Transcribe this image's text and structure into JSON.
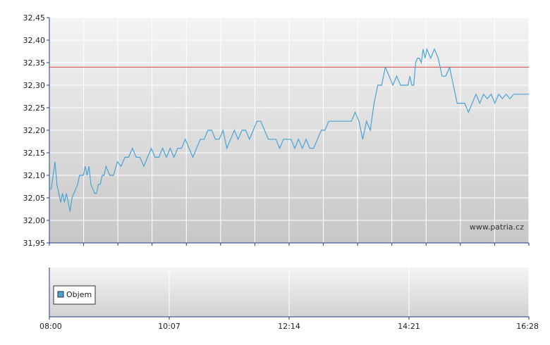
{
  "chart_data": [
    {
      "type": "line",
      "title": "",
      "xlabel": "",
      "ylabel": "",
      "ylim": [
        31.95,
        32.45
      ],
      "xlim": [
        "08:00",
        "16:28"
      ],
      "y_ticks": [
        "31,95",
        "32,00",
        "32,05",
        "32,10",
        "32,15",
        "32,20",
        "32,25",
        "32,30",
        "32,35",
        "32,40",
        "32,45"
      ],
      "grid": true,
      "reference_line": {
        "value": 32.34,
        "color": "#d94b4b"
      },
      "series": [
        {
          "color": "#4aa3d4",
          "x": [
            "08:00",
            "08:02",
            "08:04",
            "08:06",
            "08:08",
            "08:10",
            "08:12",
            "08:14",
            "08:16",
            "08:18",
            "08:20",
            "08:22",
            "08:24",
            "08:26",
            "08:28",
            "08:30",
            "08:32",
            "08:34",
            "08:36",
            "08:38",
            "08:40",
            "08:42",
            "08:44",
            "08:46",
            "08:48",
            "08:50",
            "08:52",
            "08:54",
            "08:56",
            "08:58",
            "09:00",
            "09:04",
            "09:08",
            "09:12",
            "09:16",
            "09:20",
            "09:24",
            "09:28",
            "09:32",
            "09:36",
            "09:40",
            "09:44",
            "09:48",
            "09:52",
            "09:56",
            "10:00",
            "10:04",
            "10:08",
            "10:12",
            "10:16",
            "10:20",
            "10:24",
            "10:28",
            "10:32",
            "10:36",
            "10:40",
            "10:44",
            "10:48",
            "10:52",
            "10:56",
            "11:00",
            "11:04",
            "11:08",
            "11:12",
            "11:16",
            "11:20",
            "11:24",
            "11:28",
            "11:32",
            "11:36",
            "11:40",
            "11:44",
            "11:48",
            "11:52",
            "11:56",
            "12:00",
            "12:04",
            "12:08",
            "12:12",
            "12:16",
            "12:20",
            "12:24",
            "12:28",
            "12:32",
            "12:36",
            "12:40",
            "12:44",
            "12:48",
            "12:52",
            "12:56",
            "13:00",
            "13:04",
            "13:08",
            "13:12",
            "13:16",
            "13:20",
            "13:24",
            "13:28",
            "13:32",
            "13:36",
            "13:40",
            "13:44",
            "13:48",
            "13:52",
            "13:56",
            "14:00",
            "14:04",
            "14:08",
            "14:12",
            "14:16",
            "14:20",
            "14:22",
            "14:24",
            "14:26",
            "14:28",
            "14:30",
            "14:32",
            "14:34",
            "14:36",
            "14:38",
            "14:40",
            "14:44",
            "14:48",
            "14:52",
            "14:56",
            "15:00",
            "15:04",
            "15:08",
            "15:12",
            "15:16",
            "15:20",
            "15:24",
            "15:28",
            "15:32",
            "15:36",
            "15:40",
            "15:44",
            "15:48",
            "15:52",
            "15:56",
            "16:00",
            "16:04",
            "16:08",
            "16:12",
            "16:16",
            "16:20",
            "16:24",
            "16:28"
          ],
          "values": [
            32.07,
            32.07,
            32.1,
            32.13,
            32.08,
            32.06,
            32.04,
            32.06,
            32.04,
            32.06,
            32.04,
            32.02,
            32.05,
            32.06,
            32.07,
            32.08,
            32.1,
            32.1,
            32.1,
            32.12,
            32.1,
            32.12,
            32.08,
            32.07,
            32.06,
            32.06,
            32.08,
            32.08,
            32.1,
            32.1,
            32.12,
            32.1,
            32.1,
            32.13,
            32.12,
            32.14,
            32.14,
            32.16,
            32.14,
            32.14,
            32.12,
            32.14,
            32.16,
            32.14,
            32.14,
            32.16,
            32.14,
            32.16,
            32.14,
            32.16,
            32.16,
            32.18,
            32.16,
            32.14,
            32.16,
            32.18,
            32.18,
            32.2,
            32.2,
            32.18,
            32.18,
            32.2,
            32.16,
            32.18,
            32.2,
            32.18,
            32.2,
            32.2,
            32.18,
            32.2,
            32.22,
            32.22,
            32.2,
            32.18,
            32.18,
            32.18,
            32.16,
            32.18,
            32.18,
            32.18,
            32.16,
            32.18,
            32.16,
            32.18,
            32.16,
            32.16,
            32.18,
            32.2,
            32.2,
            32.22,
            32.22,
            32.22,
            32.22,
            32.22,
            32.22,
            32.22,
            32.24,
            32.22,
            32.18,
            32.22,
            32.2,
            32.26,
            32.3,
            32.3,
            32.34,
            32.32,
            32.3,
            32.32,
            32.3,
            32.3,
            32.3,
            32.32,
            32.3,
            32.3,
            32.35,
            32.36,
            32.36,
            32.35,
            32.38,
            32.36,
            32.38,
            32.36,
            32.38,
            32.36,
            32.32,
            32.32,
            32.34,
            32.3,
            32.26,
            32.26,
            32.26,
            32.24,
            32.26,
            32.28,
            32.26,
            32.28,
            32.27,
            32.28,
            32.26,
            32.28,
            32.27,
            32.28,
            32.27,
            32.28,
            32.28,
            32.28,
            32.28,
            32.28
          ]
        }
      ]
    },
    {
      "type": "bar",
      "title": "",
      "x_ticks": [
        "08:00",
        "10:07",
        "12:14",
        "14:21",
        "16:28"
      ],
      "legend": {
        "entries": [
          "Objem"
        ],
        "placement": "bottom-left",
        "color": "#4aa3d4"
      },
      "series": []
    }
  ],
  "watermark": "www.patria.cz",
  "colors": {
    "grid": "#ffffff",
    "plot_top": "#f2f2f2",
    "plot_bottom": "#c9c9c9",
    "axis": "#1f3a8a"
  }
}
